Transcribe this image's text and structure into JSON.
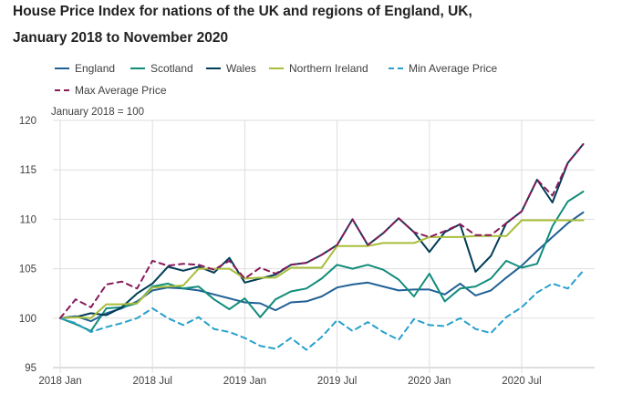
{
  "chart_data": {
    "type": "line",
    "title_line1": "House Price Index for nations of the UK and regions of England, UK,",
    "title_line2": "January 2018 to November 2020",
    "ylabel": "January 2018 = 100",
    "ylim": [
      95,
      120
    ],
    "yticks": [
      "95",
      "100",
      "105",
      "110",
      "115",
      "120"
    ],
    "xticks": [
      "2018 Jan",
      "2018 Jul",
      "2019 Jan",
      "2019 Jul",
      "2020 Jan",
      "2020 Jul"
    ],
    "x": [
      "2018-01",
      "2018-02",
      "2018-03",
      "2018-04",
      "2018-05",
      "2018-06",
      "2018-07",
      "2018-08",
      "2018-09",
      "2018-10",
      "2018-11",
      "2018-12",
      "2019-01",
      "2019-02",
      "2019-03",
      "2019-04",
      "2019-05",
      "2019-06",
      "2019-07",
      "2019-08",
      "2019-09",
      "2019-10",
      "2019-11",
      "2019-12",
      "2020-01",
      "2020-02",
      "2020-03",
      "2020-04",
      "2020-05",
      "2020-06",
      "2020-07",
      "2020-08",
      "2020-09",
      "2020-10",
      "2020-11"
    ],
    "grid": true,
    "legend_position": "top",
    "series": [
      {
        "name": "England",
        "color": "#206095",
        "dash": "solid",
        "values": [
          100,
          100.2,
          99.7,
          100.5,
          101.0,
          101.7,
          102.8,
          103.1,
          103.0,
          102.8,
          102.4,
          102.0,
          101.6,
          101.5,
          100.8,
          101.6,
          101.7,
          102.2,
          103.1,
          103.4,
          103.6,
          103.2,
          102.8,
          102.9,
          102.9,
          102.4,
          103.5,
          102.3,
          102.8,
          104.1,
          105.3,
          106.8,
          108.2,
          109.6,
          110.7
        ]
      },
      {
        "name": "Scotland",
        "color": "#118c7b",
        "dash": "solid",
        "values": [
          100,
          99.4,
          98.7,
          101.0,
          101.1,
          101.5,
          103.2,
          103.5,
          103.0,
          103.2,
          101.9,
          100.9,
          102.0,
          100.1,
          101.9,
          102.7,
          103.0,
          104.0,
          105.4,
          105.0,
          105.4,
          104.9,
          103.9,
          102.2,
          104.5,
          101.7,
          103.0,
          103.2,
          104.0,
          105.8,
          105.1,
          105.5,
          109.3,
          111.8,
          112.8
        ]
      },
      {
        "name": "Wales",
        "color": "#003c57",
        "dash": "solid",
        "values": [
          100,
          100.1,
          100.5,
          100.3,
          101.1,
          102.5,
          103.5,
          105.2,
          104.8,
          105.2,
          104.6,
          106.1,
          103.6,
          104.0,
          104.4,
          105.4,
          105.6,
          106.4,
          107.4,
          110.0,
          107.4,
          108.6,
          110.1,
          108.7,
          106.7,
          108.7,
          109.5,
          104.7,
          106.3,
          109.6,
          110.8,
          114.0,
          111.7,
          115.7,
          117.6
        ]
      },
      {
        "name": "Northern Ireland",
        "color": "#a8bd3a",
        "dash": "solid",
        "values": [
          100,
          100.1,
          100.0,
          101.4,
          101.4,
          101.5,
          103.1,
          103.2,
          103.3,
          105.0,
          105.0,
          105.0,
          104.0,
          104.1,
          104.1,
          105.1,
          105.1,
          105.1,
          107.3,
          107.3,
          107.3,
          107.6,
          107.6,
          107.6,
          108.2,
          108.2,
          108.2,
          108.3,
          108.3,
          108.3,
          109.9,
          109.9,
          109.9,
          109.9,
          109.9
        ]
      },
      {
        "name": "Min Average Price",
        "color": "#27a0cc",
        "dash": "dashed",
        "values": [
          100,
          99.5,
          98.6,
          99.1,
          99.5,
          100.0,
          101.0,
          100.0,
          99.3,
          100.1,
          98.9,
          98.6,
          98.0,
          97.2,
          96.9,
          98.0,
          96.8,
          98.1,
          99.8,
          98.7,
          99.6,
          98.6,
          97.8,
          99.9,
          99.3,
          99.2,
          100.0,
          98.9,
          98.5,
          100.1,
          101.1,
          102.6,
          103.5,
          103.0,
          104.8
        ]
      },
      {
        "name": "Max Average Price",
        "color": "#871a5b",
        "dash": "dashed",
        "values": [
          100,
          101.9,
          101.1,
          103.4,
          103.7,
          103.0,
          105.8,
          105.3,
          105.5,
          105.4,
          104.9,
          105.8,
          104.0,
          105.1,
          104.5,
          105.4,
          105.6,
          106.4,
          107.4,
          110.0,
          107.4,
          108.6,
          110.1,
          108.7,
          108.2,
          108.8,
          109.5,
          108.4,
          108.4,
          109.6,
          110.8,
          114.0,
          112.4,
          115.7,
          117.6
        ]
      }
    ]
  }
}
